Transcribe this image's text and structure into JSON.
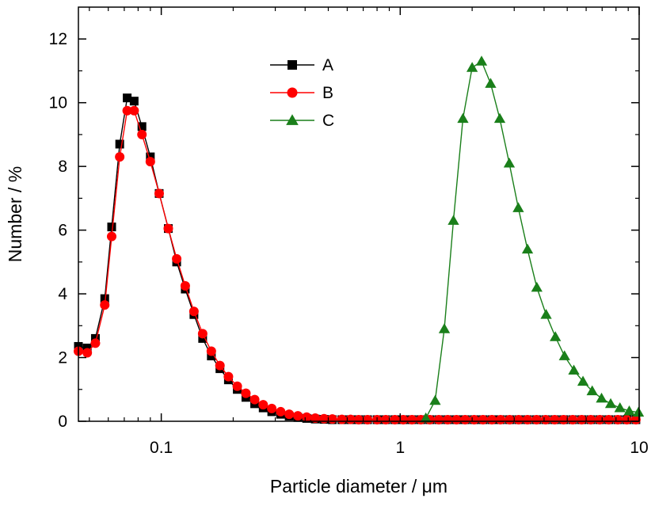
{
  "chart_data": {
    "type": "line",
    "xlabel": "Particle diameter / μm",
    "ylabel": "Number / %",
    "x_scale": "log",
    "xlim": [
      0.045,
      10
    ],
    "ylim": [
      0,
      13
    ],
    "x_ticks": [
      0.1,
      1,
      10
    ],
    "x_tick_labels": [
      "0.1",
      "1",
      "10"
    ],
    "y_ticks": [
      0,
      2,
      4,
      6,
      8,
      10,
      12
    ],
    "y_tick_labels": [
      "0",
      "2",
      "4",
      "6",
      "8",
      "10",
      "12"
    ],
    "grid": false,
    "legend": "top-center",
    "series": [
      {
        "name": "A",
        "color": "#000000",
        "marker": "square",
        "x": [
          0.045,
          0.049,
          0.053,
          0.058,
          0.062,
          0.067,
          0.072,
          0.077,
          0.083,
          0.09,
          0.098,
          0.107,
          0.116,
          0.126,
          0.137,
          0.149,
          0.162,
          0.176,
          0.191,
          0.208,
          0.226,
          0.246,
          0.267,
          0.29,
          0.316,
          0.343,
          0.373,
          0.406,
          0.441,
          0.48,
          0.52,
          0.57,
          0.62,
          0.67,
          0.73,
          0.8,
          0.87,
          0.95,
          1.03,
          1.12,
          1.22,
          1.33,
          1.45,
          1.58,
          1.72,
          1.87,
          2.04,
          2.22,
          2.42,
          2.63,
          2.87,
          3.13,
          3.41,
          3.72,
          4.06,
          4.43,
          4.83,
          5.27,
          5.75,
          6.27,
          6.84,
          7.46,
          8.14,
          8.88,
          9.69
        ],
        "values": [
          2.35,
          2.3,
          2.6,
          3.85,
          6.1,
          8.7,
          10.15,
          10.05,
          9.25,
          8.3,
          7.15,
          6.05,
          5.0,
          4.15,
          3.35,
          2.6,
          2.05,
          1.65,
          1.3,
          1.0,
          0.75,
          0.55,
          0.42,
          0.3,
          0.22,
          0.16,
          0.12,
          0.09,
          0.07,
          0.06,
          0.05,
          0.05,
          0.05,
          0.05,
          0.05,
          0.05,
          0.05,
          0.05,
          0.05,
          0.05,
          0.05,
          0.05,
          0.05,
          0.05,
          0.05,
          0.05,
          0.05,
          0.05,
          0.05,
          0.05,
          0.05,
          0.05,
          0.05,
          0.05,
          0.05,
          0.05,
          0.05,
          0.05,
          0.05,
          0.05,
          0.05,
          0.05,
          0.05,
          0.05,
          0.05
        ]
      },
      {
        "name": "B",
        "color": "#ff0000",
        "marker": "circle",
        "x": [
          0.045,
          0.049,
          0.053,
          0.058,
          0.062,
          0.067,
          0.072,
          0.077,
          0.083,
          0.09,
          0.098,
          0.107,
          0.116,
          0.126,
          0.137,
          0.149,
          0.162,
          0.176,
          0.191,
          0.208,
          0.226,
          0.246,
          0.267,
          0.29,
          0.316,
          0.343,
          0.373,
          0.406,
          0.441,
          0.48,
          0.52,
          0.57,
          0.62,
          0.67,
          0.73,
          0.8,
          0.87,
          0.95,
          1.03,
          1.12,
          1.22,
          1.33,
          1.45,
          1.58,
          1.72,
          1.87,
          2.04,
          2.22,
          2.42,
          2.63,
          2.87,
          3.13,
          3.41,
          3.72,
          4.06,
          4.43,
          4.83,
          5.27,
          5.75,
          6.27,
          6.84,
          7.46,
          8.14,
          8.88,
          9.69
        ],
        "values": [
          2.2,
          2.15,
          2.45,
          3.65,
          5.8,
          8.3,
          9.75,
          9.75,
          9.0,
          8.15,
          7.15,
          6.05,
          5.1,
          4.25,
          3.45,
          2.75,
          2.2,
          1.75,
          1.4,
          1.1,
          0.88,
          0.68,
          0.52,
          0.4,
          0.3,
          0.22,
          0.17,
          0.13,
          0.1,
          0.08,
          0.07,
          0.06,
          0.06,
          0.05,
          0.05,
          0.05,
          0.05,
          0.05,
          0.05,
          0.05,
          0.05,
          0.05,
          0.05,
          0.05,
          0.05,
          0.05,
          0.05,
          0.05,
          0.05,
          0.05,
          0.05,
          0.05,
          0.05,
          0.05,
          0.05,
          0.05,
          0.05,
          0.05,
          0.05,
          0.05,
          0.05,
          0.05,
          0.05,
          0.05,
          0.05
        ]
      },
      {
        "name": "C",
        "color": "#1a7f1a",
        "marker": "triangle",
        "x": [
          1.28,
          1.4,
          1.53,
          1.67,
          1.83,
          2.0,
          2.19,
          2.39,
          2.61,
          2.86,
          3.12,
          3.41,
          3.73,
          4.08,
          4.46,
          4.87,
          5.33,
          5.82,
          6.36,
          6.96,
          7.6,
          8.31,
          9.09,
          9.93
        ],
        "values": [
          0.1,
          0.65,
          2.9,
          6.3,
          9.5,
          11.1,
          11.3,
          10.6,
          9.5,
          8.1,
          6.7,
          5.4,
          4.2,
          3.35,
          2.65,
          2.05,
          1.6,
          1.25,
          0.95,
          0.72,
          0.55,
          0.42,
          0.32,
          0.28
        ]
      }
    ]
  }
}
